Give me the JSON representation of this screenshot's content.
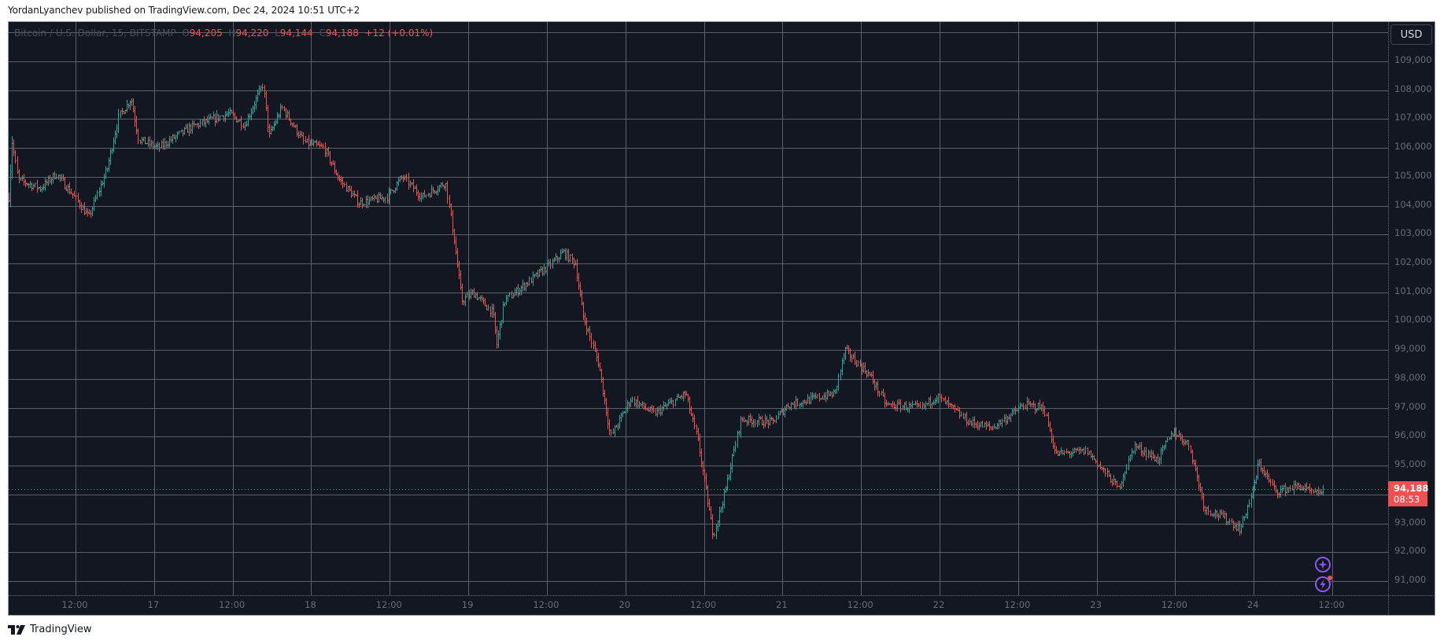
{
  "header": {
    "published_line": "YordanLyanchev published on TradingView.com, Dec 24, 2024 10:51 UTC+2"
  },
  "legend": {
    "symbol": "Bitcoin / U.S. Dollar, 15, BITSTAMP",
    "o_label": "O",
    "o_value": "94,205",
    "h_label": "H",
    "h_value": "94,220",
    "l_label": "L",
    "l_value": "94,144",
    "c_label": "C",
    "c_value": "94,188",
    "change": "+12 (+0.01%)"
  },
  "currency_button": "USD",
  "last_price": {
    "price": "94,188",
    "countdown": "08:53"
  },
  "footer": {
    "brand": "TradingView"
  },
  "colors": {
    "background": "#131722",
    "grid": "#5d606b",
    "up": "#26a69a",
    "down": "#f0514f",
    "axis_text": "#6a6d78",
    "accent_icon": "#8a59e8"
  },
  "icons": [
    "sparkle-icon",
    "lightning-icon"
  ],
  "chart_data": {
    "type": "ohlc",
    "title": "Bitcoin / U.S. Dollar, 15, BITSTAMP",
    "interval": "15",
    "exchange": "BITSTAMP",
    "currency": "USD",
    "xlabel": "",
    "ylabel": "USD",
    "grid": true,
    "ylim": [
      90500,
      110000
    ],
    "y_ticks": [
      109000,
      108000,
      107000,
      106000,
      105000,
      104000,
      103000,
      102000,
      101000,
      100000,
      99000,
      98000,
      97000,
      96000,
      95000,
      93000,
      92000,
      91000
    ],
    "y_tick_labels": [
      "109,000",
      "108,000",
      "107,000",
      "106,000",
      "105,000",
      "104,000",
      "103,000",
      "102,000",
      "101,000",
      "100,000",
      "99,000",
      "98,000",
      "97,000",
      "96,000",
      "95,000",
      "93,000",
      "92,000",
      "91,000"
    ],
    "x_ticks_hours": [
      12,
      24,
      36,
      48,
      60,
      72,
      84,
      96,
      108,
      120,
      132,
      144,
      156,
      168,
      180,
      192,
      204
    ],
    "x_tick_labels": [
      "12:00",
      "17",
      "12:00",
      "18",
      "12:00",
      "19",
      "12:00",
      "20",
      "12:00",
      "21",
      "12:00",
      "22",
      "12:00",
      "23",
      "12:00",
      "24",
      "12:00"
    ],
    "x_reference": "hours since Dec 16 00:00",
    "last_close": 94188,
    "open": 94205,
    "high": 94220,
    "low": 94144,
    "close": 94188,
    "change": 12,
    "change_pct": 0.01,
    "keypoints": [
      [
        1.8,
        104300
      ],
      [
        2.3,
        106200
      ],
      [
        3.2,
        104900
      ],
      [
        6.6,
        104600
      ],
      [
        9.0,
        105100
      ],
      [
        11.5,
        104400
      ],
      [
        14.0,
        103600
      ],
      [
        16.8,
        105300
      ],
      [
        18.6,
        107100
      ],
      [
        20.5,
        107700
      ],
      [
        21.6,
        106300
      ],
      [
        24.6,
        106000
      ],
      [
        29.4,
        106700
      ],
      [
        35.4,
        107200
      ],
      [
        37.8,
        106800
      ],
      [
        40.6,
        108200
      ],
      [
        41.5,
        106400
      ],
      [
        43.5,
        107400
      ],
      [
        46.9,
        106200
      ],
      [
        49.9,
        106000
      ],
      [
        52.3,
        104900
      ],
      [
        55.3,
        104100
      ],
      [
        59.5,
        104300
      ],
      [
        61.9,
        105000
      ],
      [
        64.9,
        104300
      ],
      [
        68.5,
        104800
      ],
      [
        69.7,
        103000
      ],
      [
        71.0,
        100700
      ],
      [
        72.7,
        101000
      ],
      [
        75.7,
        100300
      ],
      [
        76.3,
        99200
      ],
      [
        77.5,
        100700
      ],
      [
        84.7,
        102000
      ],
      [
        86.5,
        102400
      ],
      [
        88.3,
        102000
      ],
      [
        89.5,
        100200
      ],
      [
        91.9,
        98500
      ],
      [
        93.7,
        96000
      ],
      [
        96.8,
        97300
      ],
      [
        100.4,
        96800
      ],
      [
        105.2,
        97500
      ],
      [
        107.0,
        95900
      ],
      [
        109.4,
        92600
      ],
      [
        111.2,
        94100
      ],
      [
        113.6,
        96600
      ],
      [
        118.4,
        96500
      ],
      [
        120.8,
        97100
      ],
      [
        128.0,
        97500
      ],
      [
        129.5,
        99000
      ],
      [
        133.4,
        98100
      ],
      [
        135.8,
        97100
      ],
      [
        141.2,
        97000
      ],
      [
        143.6,
        97400
      ],
      [
        148.5,
        96500
      ],
      [
        152.0,
        96300
      ],
      [
        156.9,
        97100
      ],
      [
        159.9,
        97000
      ],
      [
        161.7,
        95400
      ],
      [
        166.5,
        95500
      ],
      [
        171.3,
        94200
      ],
      [
        173.7,
        95700
      ],
      [
        177.3,
        95200
      ],
      [
        179.7,
        96200
      ],
      [
        182.1,
        95700
      ],
      [
        184.5,
        93500
      ],
      [
        187.5,
        93200
      ],
      [
        189.9,
        92800
      ],
      [
        191.7,
        94000
      ],
      [
        192.7,
        95100
      ],
      [
        195.3,
        94100
      ],
      [
        198.9,
        94300
      ],
      [
        201.3,
        94000
      ],
      [
        202.6,
        94188
      ]
    ]
  }
}
